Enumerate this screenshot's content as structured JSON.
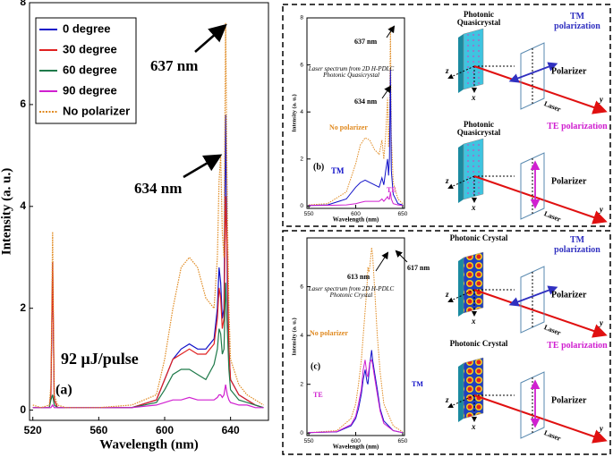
{
  "chart_data": [
    {
      "type": "line",
      "xlabel": "Wavelength (nm)",
      "ylabel": "Intensity (a. u.)",
      "xlim": [
        518,
        663
      ],
      "ylim": [
        -0.2,
        8
      ],
      "xticks": [
        520,
        560,
        600,
        640
      ],
      "yticks": [
        0,
        2,
        4,
        6,
        8
      ],
      "legend": "upper left",
      "x": [
        520,
        525,
        530,
        531,
        532,
        533,
        535,
        540,
        560,
        580,
        595,
        600,
        605,
        610,
        615,
        620,
        625,
        630,
        632,
        633,
        634,
        635,
        636,
        637,
        638,
        639,
        640,
        645,
        650,
        655,
        660
      ],
      "series": [
        {
          "name": "0 degree",
          "color": "#1010c8",
          "style": "solid",
          "values": [
            0.05,
            0.05,
            0.05,
            0.3,
            2.9,
            0.2,
            0.05,
            0.05,
            0.05,
            0.05,
            0.2,
            0.6,
            1.0,
            1.2,
            1.3,
            1.2,
            1.2,
            1.4,
            2.0,
            2.8,
            2.5,
            1.8,
            2.0,
            5.8,
            2.5,
            1.2,
            0.6,
            0.3,
            0.2,
            0.1,
            0.05
          ]
        },
        {
          "name": "30 degree",
          "color": "#e02020",
          "style": "solid",
          "values": [
            0.05,
            0.05,
            0.05,
            0.3,
            2.9,
            0.2,
            0.05,
            0.05,
            0.05,
            0.05,
            0.2,
            0.6,
            1.0,
            1.1,
            1.2,
            1.1,
            1.1,
            1.3,
            1.8,
            2.4,
            2.2,
            1.6,
            1.8,
            4.2,
            3.0,
            1.2,
            0.6,
            0.3,
            0.2,
            0.1,
            0.05
          ]
        },
        {
          "name": "60 degree",
          "color": "#1f7a4a",
          "style": "solid",
          "values": [
            0.05,
            0.05,
            0.05,
            0.2,
            0.3,
            0.1,
            0.05,
            0.05,
            0.05,
            0.05,
            0.15,
            0.4,
            0.7,
            0.8,
            0.8,
            0.7,
            0.6,
            0.9,
            1.2,
            1.6,
            1.5,
            1.1,
            1.2,
            2.5,
            1.6,
            0.8,
            0.4,
            0.2,
            0.15,
            0.1,
            0.05
          ]
        },
        {
          "name": "90 degree",
          "color": "#d020d0",
          "style": "solid",
          "values": [
            0.05,
            0.05,
            0.05,
            0.05,
            0.1,
            0.05,
            0.05,
            0.05,
            0.05,
            0.05,
            0.1,
            0.15,
            0.2,
            0.2,
            0.25,
            0.2,
            0.2,
            0.2,
            0.25,
            0.3,
            0.3,
            0.25,
            0.3,
            0.5,
            0.3,
            0.2,
            0.15,
            0.1,
            0.1,
            0.05,
            0.05
          ]
        },
        {
          "name": "No polarizer",
          "color": "#e08a20",
          "style": "dotted",
          "values": [
            0.1,
            0.05,
            0.1,
            0.5,
            3.5,
            0.3,
            0.1,
            0.05,
            0.05,
            0.1,
            0.3,
            1.0,
            2.0,
            2.8,
            3.0,
            2.8,
            2.2,
            2.0,
            3.0,
            4.5,
            5.0,
            3.5,
            3.0,
            7.6,
            4.0,
            2.0,
            1.0,
            0.5,
            0.3,
            0.2,
            0.1
          ]
        }
      ],
      "annotations": [
        "637 nm",
        "634 nm",
        "92 μJ/pulse",
        "(a)"
      ]
    },
    {
      "type": "line",
      "xlabel": "Wavelength (nm)",
      "ylabel": "Intensity (a. u.)",
      "xlim": [
        548,
        652
      ],
      "ylim": [
        -0.1,
        8
      ],
      "xticks": [
        550,
        600,
        650
      ],
      "yticks": [
        0,
        2,
        4,
        6,
        8
      ],
      "x": [
        550,
        570,
        590,
        600,
        605,
        610,
        615,
        620,
        625,
        628,
        630,
        632,
        634,
        635,
        636,
        637,
        638,
        640,
        645,
        650
      ],
      "series": [
        {
          "name": "No polarizer",
          "color": "#e08a20",
          "style": "dotted",
          "values": [
            0.05,
            0.1,
            0.6,
            1.8,
            2.6,
            2.9,
            2.8,
            2.4,
            2.2,
            2.8,
            2.0,
            3.0,
            4.6,
            2.5,
            3.5,
            7.6,
            3.0,
            1.0,
            0.3,
            0.1
          ]
        },
        {
          "name": "TM",
          "color": "#1010c8",
          "style": "solid",
          "values": [
            0.02,
            0.05,
            0.3,
            0.8,
            1.0,
            1.1,
            1.0,
            0.9,
            0.8,
            1.2,
            0.9,
            1.5,
            2.0,
            1.3,
            2.0,
            5.8,
            1.5,
            0.5,
            0.1,
            0.05
          ]
        },
        {
          "name": "TE",
          "color": "#d020d0",
          "style": "solid",
          "values": [
            0.02,
            0.03,
            0.05,
            0.1,
            0.15,
            0.2,
            0.2,
            0.2,
            0.2,
            0.3,
            0.2,
            0.3,
            0.4,
            0.3,
            0.3,
            0.6,
            0.3,
            0.1,
            0.05,
            0.02
          ]
        }
      ],
      "annotations": [
        "637 nm",
        "634 nm",
        "Laser spectrum from 2D H-PDLC Photonic Quasicrystal",
        "(b)"
      ]
    },
    {
      "type": "line",
      "xlabel": "Wavelength (nm)",
      "ylabel": "Intensity (a. u.)",
      "xlim": [
        548,
        652
      ],
      "ylim": [
        -0.1,
        8
      ],
      "xticks": [
        550,
        600,
        650
      ],
      "yticks": [
        0,
        2,
        4,
        6
      ],
      "x": [
        550,
        580,
        595,
        600,
        603,
        606,
        608,
        610,
        612,
        613,
        614,
        615,
        617,
        618,
        620,
        623,
        626,
        630,
        640,
        650
      ],
      "series": [
        {
          "name": "No polarizer",
          "color": "#e08a20",
          "style": "dotted",
          "values": [
            0.02,
            0.1,
            0.6,
            1.2,
            2.0,
            3.0,
            4.0,
            5.0,
            6.0,
            6.8,
            6.6,
            6.8,
            7.6,
            7.3,
            6.0,
            4.0,
            2.5,
            1.2,
            0.3,
            0.05
          ]
        },
        {
          "name": "TM",
          "color": "#1010c8",
          "style": "solid",
          "values": [
            0.02,
            0.05,
            0.3,
            0.6,
            1.0,
            1.6,
            2.2,
            2.6,
            2.1,
            2.0,
            2.4,
            2.8,
            3.4,
            3.0,
            2.5,
            1.8,
            1.0,
            0.5,
            0.1,
            0.02
          ]
        },
        {
          "name": "TE",
          "color": "#d020d0",
          "style": "solid",
          "values": [
            0.02,
            0.06,
            0.35,
            0.7,
            1.2,
            1.8,
            2.6,
            3.0,
            2.4,
            2.3,
            2.6,
            2.9,
            3.0,
            2.8,
            2.3,
            1.6,
            0.9,
            0.4,
            0.1,
            0.02
          ]
        }
      ],
      "annotations": [
        "613 nm",
        "617 nm",
        "Laser spectrum from 2D H-PDLC Photonic Crystal",
        "(c)"
      ]
    }
  ],
  "diagrams": [
    {
      "sample": "Photonic Quasicrystal",
      "polarization": "TM polarization",
      "polarizer": "Polarizer",
      "beam": "Laser",
      "axes": [
        "z",
        "x",
        "y"
      ]
    },
    {
      "sample": "Photonic Quasicrystal",
      "polarization": "TE polarization",
      "polarizer": "Polarizer",
      "beam": "Laser",
      "axes": [
        "z",
        "x",
        "y"
      ]
    },
    {
      "sample": "Photonic Crystal",
      "polarization": "TM polarization",
      "polarizer": "Polarizer",
      "beam": "Laser",
      "axes": [
        "z",
        "x",
        "y"
      ]
    },
    {
      "sample": "Photonic Crystal",
      "polarization": "TE polarization",
      "polarizer": "Polarizer",
      "beam": "Laser",
      "axes": [
        "z",
        "x",
        "y"
      ]
    }
  ]
}
